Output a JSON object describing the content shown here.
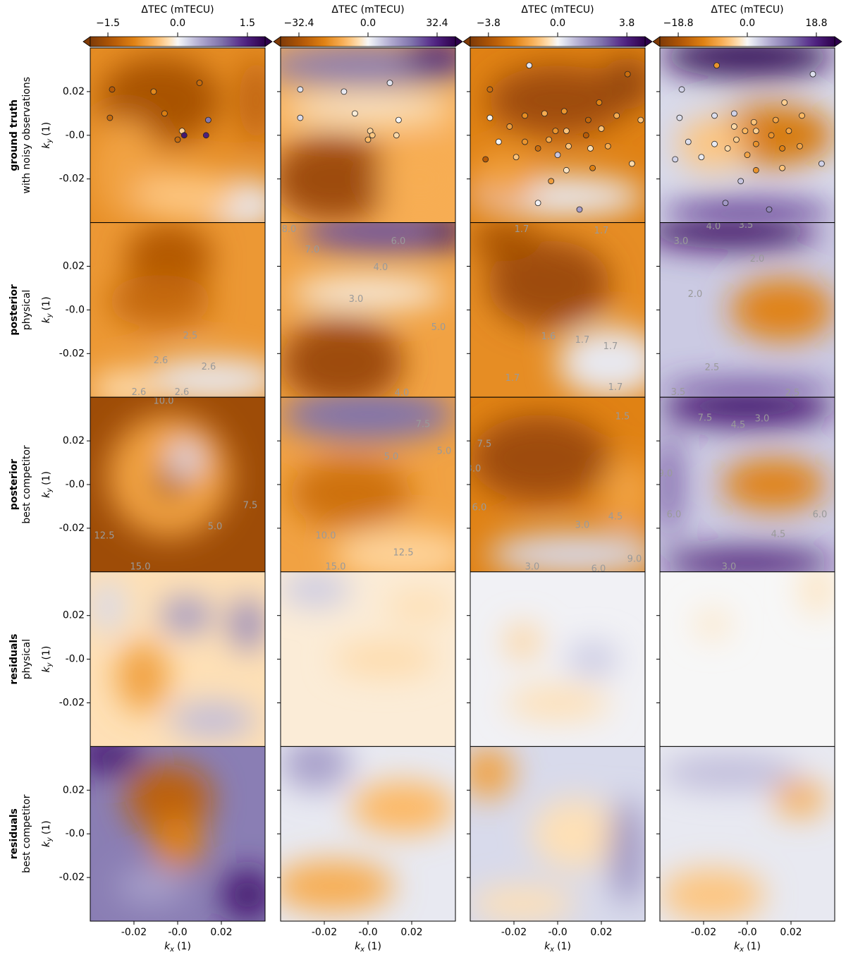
{
  "row_labels": [
    {
      "title": "ground truth",
      "subtitle": "with noisy observations"
    },
    {
      "title": "posterior",
      "subtitle": "physical"
    },
    {
      "title": "posterior",
      "subtitle": "best competitor"
    },
    {
      "title": "residuals",
      "subtitle": "physical"
    },
    {
      "title": "residuals",
      "subtitle": "best competitor"
    }
  ],
  "chart_data": [
    {
      "type": "heatmap",
      "colorbar_label": "ΔTEC (mTECU)",
      "clim": [
        -1.88,
        1.88
      ],
      "cticks": [
        {
          "value": -1.5,
          "label": "−1.5"
        },
        {
          "value": 0,
          "label": "0.0"
        },
        1.5
      ],
      "xlim": [
        -0.04,
        0.04
      ],
      "xticks": [
        -0.02,
        {
          "value": 0,
          "label": "-0.0"
        },
        0.02
      ],
      "ylim": [
        -0.04,
        0.04
      ],
      "yticks": [
        0.02,
        {
          "value": 0,
          "label": "-0.0"
        },
        -0.02
      ],
      "xlabel": {
        "var": "k",
        "sub": "x",
        "unit": "(1)"
      },
      "ylabel": {
        "var": "k",
        "sub": "y",
        "unit": "(1)"
      },
      "observations": {
        "kx": [
          -0.03,
          -0.031,
          -0.011,
          -0.006,
          0.01,
          0.014,
          0.002,
          0.003,
          0.0,
          0.013
        ],
        "ky": [
          0.021,
          0.008,
          0.02,
          0.01,
          0.024,
          0.007,
          0.002,
          0.0,
          -0.002,
          0.0
        ],
        "values": [
          -1.4,
          -1.2,
          -0.9,
          -1.0,
          -1.2,
          0.9,
          -0.3,
          1.6,
          -1.2,
          1.5
        ]
      },
      "contour_labels": [
        [
          "2.5",
          "2.6",
          "2.6",
          "2.6",
          "2.6"
        ],
        [
          "10.0",
          "7.5",
          "5.0",
          "12.5",
          "15.0"
        ]
      ]
    },
    {
      "type": "heatmap",
      "colorbar_label": "ΔTEC (mTECU)",
      "clim": [
        -41,
        41
      ],
      "cticks": [
        {
          "value": -32.4,
          "label": "−32.4"
        },
        {
          "value": 0,
          "label": "0.0"
        },
        32.4
      ],
      "xlim": [
        -0.04,
        0.04
      ],
      "xticks": [
        -0.02,
        {
          "value": 0,
          "label": "-0.0"
        },
        0.02
      ],
      "xlabel": {
        "var": "k",
        "sub": "x",
        "unit": "(1)"
      },
      "observations": {
        "kx": [
          -0.031,
          -0.031,
          -0.011,
          -0.006,
          0.01,
          0.014,
          0.001,
          0.002,
          0.0,
          0.013
        ],
        "ky": [
          0.021,
          0.008,
          0.02,
          0.01,
          0.024,
          0.007,
          0.002,
          0.0,
          -0.002,
          0.0
        ],
        "values": [
          3,
          4,
          2,
          -2,
          3,
          0,
          -6,
          -8,
          -10,
          -5
        ]
      },
      "contour_labels": [
        [
          "8.0",
          "7.0",
          "6.0",
          "4.0",
          "3.0",
          "5.0",
          "4.0"
        ],
        [
          "7.5",
          "5.0",
          "5.0",
          "10.0",
          "12.5",
          "15.0"
        ]
      ]
    },
    {
      "type": "heatmap",
      "colorbar_label": "ΔTEC (mTECU)",
      "clim": [
        -4.8,
        4.8
      ],
      "cticks": [
        {
          "value": -3.8,
          "label": "−3.8"
        },
        {
          "value": 0,
          "label": "0.0"
        },
        3.8
      ],
      "xlim": [
        -0.04,
        0.04
      ],
      "xticks": [
        -0.02,
        {
          "value": 0,
          "label": "-0.0"
        },
        0.02
      ],
      "xlabel": {
        "var": "k",
        "sub": "x",
        "unit": "(1)"
      },
      "observations": {
        "kx": [
          -0.013,
          0.032,
          -0.031,
          0.019,
          -0.031,
          -0.015,
          -0.006,
          0.003,
          0.014,
          0.027,
          0.038,
          -0.022,
          -0.001,
          0.004,
          0.013,
          0.02,
          -0.027,
          -0.015,
          -0.009,
          -0.004,
          0.005,
          0.015,
          0.023,
          -0.033,
          0.0,
          -0.019,
          0.004,
          0.016,
          0.034,
          -0.003,
          -0.009,
          0.01
        ],
        "ky": [
          0.032,
          0.028,
          0.021,
          0.015,
          0.008,
          0.009,
          0.01,
          0.011,
          0.007,
          0.009,
          0.007,
          0.004,
          0.002,
          0.002,
          0.0,
          0.003,
          -0.003,
          -0.003,
          -0.006,
          -0.002,
          -0.005,
          -0.006,
          -0.005,
          -0.011,
          -0.009,
          -0.01,
          -0.016,
          -0.015,
          -0.013,
          -0.021,
          -0.031,
          -0.034
        ],
        "values": [
          0.3,
          -3.0,
          -3.0,
          -2.4,
          -0.1,
          -2.2,
          -1.5,
          -2.0,
          -3.2,
          -1.5,
          -1.0,
          -1.8,
          -2.0,
          -1.0,
          -3.5,
          -1.0,
          0.0,
          -2.0,
          -3.0,
          -1.5,
          -1.0,
          -0.5,
          -1.5,
          -3.5,
          0.8,
          -1.0,
          -0.4,
          -2.5,
          -0.6,
          -1.8,
          0.1,
          1.5
        ]
      },
      "contour_labels": [
        [
          "1.7",
          "1.7",
          "1.6",
          "1.7",
          "1.7",
          "1.7",
          "1.7"
        ],
        [
          "1.5",
          "7.5",
          "3.0",
          "6.0",
          "3.0",
          "4.5",
          "9.0",
          "3.0",
          "6.0"
        ]
      ]
    },
    {
      "type": "heatmap",
      "colorbar_label": "ΔTEC (mTECU)",
      "clim": [
        -23.8,
        23.8
      ],
      "cticks": [
        {
          "value": -18.8,
          "label": "−18.8"
        },
        {
          "value": 0,
          "label": "0.0"
        },
        18.8
      ],
      "xlim": [
        -0.04,
        0.04
      ],
      "xticks": [
        -0.02,
        {
          "value": 0,
          "label": "-0.0"
        },
        0.02
      ],
      "xlabel": {
        "var": "k",
        "sub": "x",
        "unit": "(1)"
      },
      "observations": {
        "kx": [
          -0.014,
          0.03,
          -0.03,
          0.017,
          -0.031,
          -0.015,
          -0.006,
          0.003,
          0.013,
          0.025,
          -0.006,
          -0.001,
          0.004,
          0.011,
          0.019,
          -0.027,
          -0.015,
          -0.009,
          -0.005,
          0.004,
          0.016,
          0.024,
          -0.033,
          0.0,
          -0.021,
          0.004,
          0.016,
          0.034,
          -0.003,
          -0.01,
          0.01
        ],
        "ky": [
          0.032,
          0.028,
          0.021,
          0.015,
          0.008,
          0.009,
          0.01,
          0.006,
          0.007,
          0.009,
          0.004,
          0.002,
          0.002,
          0.0,
          0.002,
          -0.003,
          -0.004,
          -0.006,
          -0.002,
          -0.004,
          -0.006,
          -0.005,
          -0.011,
          -0.009,
          -0.01,
          -0.016,
          -0.015,
          -0.013,
          -0.021,
          -0.031,
          -0.034
        ],
        "values": [
          -10,
          2,
          3,
          -4,
          2,
          2,
          3,
          -5,
          -8,
          -6,
          -3,
          -6,
          -4,
          -10,
          -8,
          2,
          1,
          -3,
          -4,
          -10,
          -12,
          -8,
          3,
          -8,
          1,
          -10,
          -5,
          3,
          4,
          8,
          10
        ]
      },
      "contour_labels": [
        [
          "4.0",
          "3.5",
          "3.0",
          "2.0",
          "2.0",
          "2.5",
          "3.5",
          "2.5"
        ],
        [
          "7.5",
          "4.5",
          "3.0",
          "9.0",
          "6.0",
          "6.0",
          "4.5",
          "3.0"
        ]
      ]
    }
  ]
}
